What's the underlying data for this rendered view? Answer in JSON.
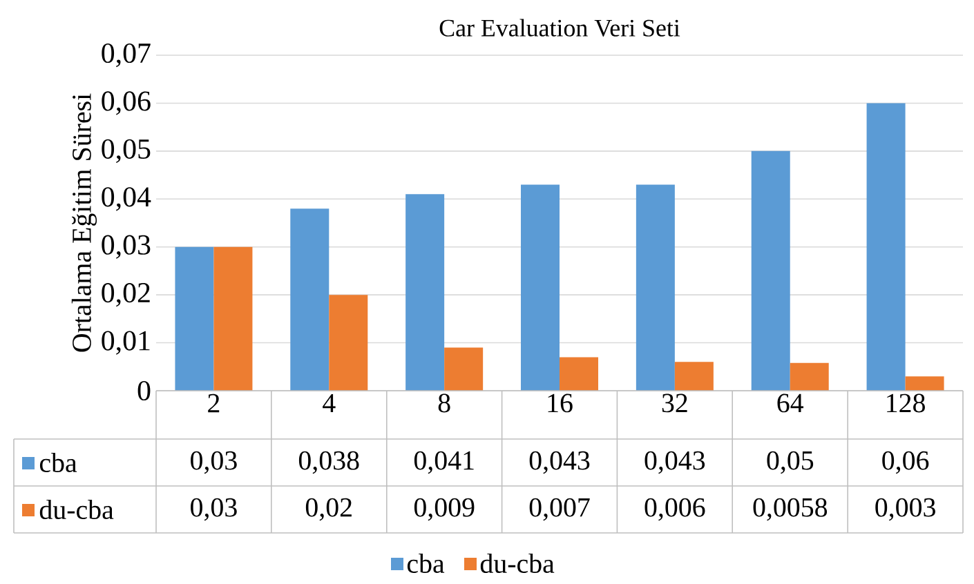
{
  "chart_data": {
    "type": "bar",
    "title": "Car Evaluation Veri Seti",
    "ylabel": "Ortalama Eğitim Süresi",
    "categories": [
      "2",
      "4",
      "8",
      "16",
      "32",
      "64",
      "128"
    ],
    "series": [
      {
        "name": "cba",
        "color": "#5b9bd5",
        "values": [
          0.03,
          0.038,
          0.041,
          0.043,
          0.043,
          0.05,
          0.06
        ],
        "value_labels": [
          "0,03",
          "0,038",
          "0,041",
          "0,043",
          "0,043",
          "0,05",
          "0,06"
        ]
      },
      {
        "name": "du-cba",
        "color": "#ed7d31",
        "values": [
          0.03,
          0.02,
          0.009,
          0.007,
          0.006,
          0.0058,
          0.003
        ],
        "value_labels": [
          "0,03",
          "0,02",
          "0,009",
          "0,007",
          "0,006",
          "0,0058",
          "0,003"
        ]
      }
    ],
    "ylim": [
      0,
      0.07
    ],
    "yticks": [
      0,
      {
        "value": 0.01,
        "label": "0,01"
      },
      {
        "value": 0.02,
        "label": "0,02"
      },
      {
        "value": 0.03,
        "label": "0,03"
      },
      {
        "value": 0.04,
        "label": "0,04"
      },
      {
        "value": 0.05,
        "label": "0,05"
      },
      {
        "value": 0.06,
        "label": "0,06"
      },
      {
        "value": 0.07,
        "label": "0,07"
      }
    ],
    "grid": "y",
    "legend": "bottom"
  }
}
